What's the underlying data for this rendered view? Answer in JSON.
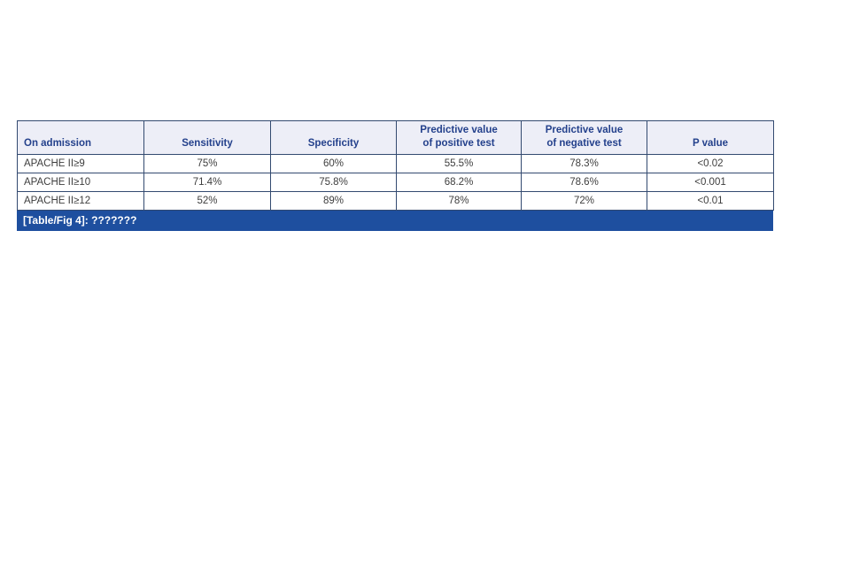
{
  "page": {
    "background_color": "#ffffff"
  },
  "table": {
    "columns": [
      "On admission",
      "Sensitivity",
      "Specificity",
      "Predictive value\nof positive test",
      "Predictive value\nof negative test",
      "P value"
    ],
    "rows": [
      [
        "APACHE II≥9",
        "75%",
        "60%",
        "55.5%",
        "78.3%",
        "<0.02"
      ],
      [
        "APACHE II≥10",
        "71.4%",
        "75.8%",
        "68.2%",
        "78.6%",
        "<0.001"
      ],
      [
        "APACHE II≥12",
        "52%",
        "89%",
        "78%",
        "72%",
        "<0.01"
      ]
    ],
    "caption": "[Table/Fig 4]: ???????",
    "colors": {
      "header_bg": "#edeef7",
      "header_text": "#24418c",
      "border": "#334a70",
      "cell_text": "#3e3e3e",
      "caption_bg": "#1e4f9f",
      "caption_text": "#ffffff"
    }
  },
  "chart_data": {
    "type": "table",
    "title": "[Table/Fig 4]: ???????",
    "categories": [
      "APACHE II≥9",
      "APACHE II≥10",
      "APACHE II≥12"
    ],
    "series": [
      {
        "name": "Sensitivity",
        "values": [
          "75%",
          "71.4%",
          "52%"
        ]
      },
      {
        "name": "Specificity",
        "values": [
          "60%",
          "75.8%",
          "89%"
        ]
      },
      {
        "name": "Predictive value of positive test",
        "values": [
          "55.5%",
          "68.2%",
          "78%"
        ]
      },
      {
        "name": "Predictive value of negative test",
        "values": [
          "78.3%",
          "78.6%",
          "72%"
        ]
      },
      {
        "name": "P value",
        "values": [
          "<0.02",
          "<0.001",
          "<0.01"
        ]
      }
    ]
  }
}
